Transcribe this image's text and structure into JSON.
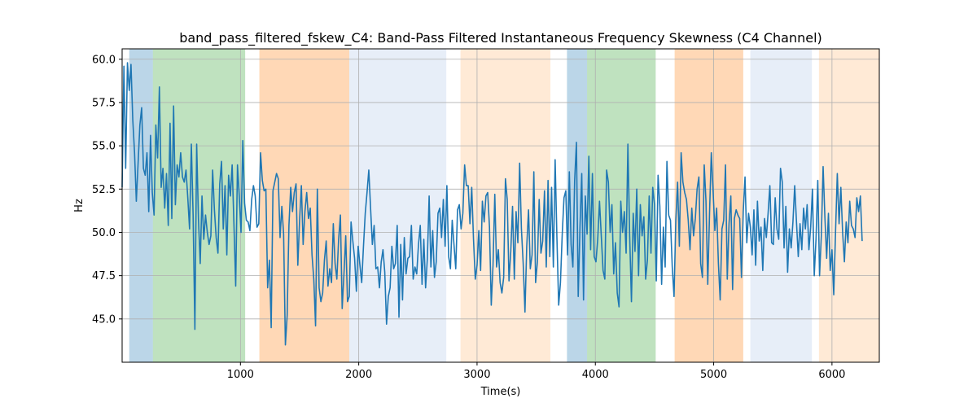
{
  "chart_data": {
    "type": "line",
    "title": "band_pass_filtered_fskew_C4: Band-Pass Filtered Instantaneous Frequency Skewness (C4 Channel)",
    "xlabel": "Time(s)",
    "ylabel": "Hz",
    "xlim": [
      0,
      6400
    ],
    "ylim": [
      42.5,
      60.6
    ],
    "grid": true,
    "x_ticks": [
      1000,
      2000,
      3000,
      4000,
      5000,
      6000
    ],
    "y_ticks": [
      45.0,
      47.5,
      50.0,
      52.5,
      55.0,
      57.5,
      60.0
    ],
    "x_tick_labels": [
      "1000",
      "2000",
      "3000",
      "4000",
      "5000",
      "6000"
    ],
    "y_tick_labels": [
      "45.0",
      "47.5",
      "50.0",
      "52.5",
      "55.0",
      "57.5",
      "60.0"
    ],
    "line_color": "#1f77b4",
    "bands": [
      {
        "start": 60,
        "end": 260,
        "color": "#1f77b4",
        "opacity": 0.3
      },
      {
        "start": 260,
        "end": 1040,
        "color": "#2ca02c",
        "opacity": 0.3
      },
      {
        "start": 1160,
        "end": 1920,
        "color": "#ff7f0e",
        "opacity": 0.3
      },
      {
        "start": 1920,
        "end": 2740,
        "color": "#aec7e8",
        "opacity": 0.3
      },
      {
        "start": 2860,
        "end": 3620,
        "color": "#ffbb78",
        "opacity": 0.3
      },
      {
        "start": 3760,
        "end": 3930,
        "color": "#1f77b4",
        "opacity": 0.3
      },
      {
        "start": 3930,
        "end": 4510,
        "color": "#2ca02c",
        "opacity": 0.3
      },
      {
        "start": 4670,
        "end": 5250,
        "color": "#ff7f0e",
        "opacity": 0.3
      },
      {
        "start": 5310,
        "end": 5830,
        "color": "#aec7e8",
        "opacity": 0.3
      },
      {
        "start": 5890,
        "end": 6400,
        "color": "#ffbb78",
        "opacity": 0.3
      }
    ],
    "series": [
      {
        "name": "band_pass_filtered_fskew_C4",
        "x_start": 0,
        "x_step": 15,
        "values": [
          52.6,
          59.6,
          53.7,
          59.8,
          58.2,
          59.7,
          56.5,
          54.6,
          51.8,
          54.0,
          56.2,
          57.2,
          53.7,
          53.3,
          54.6,
          51.2,
          55.6,
          52.3,
          51.0,
          56.2,
          54.3,
          58.4,
          52.6,
          53.7,
          51.4,
          53.4,
          50.4,
          56.3,
          50.8,
          57.3,
          51.6,
          53.9,
          53.2,
          54.6,
          53.2,
          52.9,
          53.6,
          52.0,
          50.2,
          55.1,
          51.0,
          44.4,
          55.1,
          50.8,
          48.2,
          52.1,
          49.6,
          51.0,
          50.0,
          49.3,
          49.8,
          53.6,
          51.3,
          49.7,
          48.8,
          52.8,
          54.1,
          50.2,
          52.7,
          48.7,
          53.3,
          52.1,
          53.9,
          50.5,
          46.9,
          53.9,
          52.1,
          50.0,
          55.3,
          51.7,
          50.7,
          50.6,
          50.1,
          51.9,
          52.7,
          52.1,
          50.3,
          50.5,
          54.6,
          53.0,
          52.4,
          52.5,
          46.8,
          48.4,
          44.5,
          52.4,
          52.9,
          53.4,
          53.1,
          49.7,
          51.5,
          49.9,
          43.5,
          45.2,
          50.4,
          52.6,
          51.2,
          52.3,
          52.8,
          48.1,
          50.7,
          52.7,
          49.3,
          51.2,
          52.3,
          50.8,
          51.4,
          48.7,
          47.3,
          44.6,
          52.5,
          46.8,
          46.0,
          46.5,
          48.4,
          49.5,
          46.9,
          47.9,
          47.1,
          50.5,
          48.2,
          47.3,
          49.6,
          51.0,
          45.6,
          47.6,
          49.8,
          46.0,
          46.3,
          50.6,
          49.5,
          48.5,
          46.6,
          49.2,
          48.1,
          47.1,
          49.2,
          51.1,
          52.3,
          53.6,
          51.4,
          49.3,
          50.4,
          47.9,
          48.0,
          46.8,
          48.3,
          49.0,
          47.7,
          44.7,
          46.3,
          46.8,
          49.2,
          47.9,
          48.2,
          50.4,
          45.1,
          49.3,
          46.1,
          49.7,
          47.6,
          48.5,
          48.6,
          50.4,
          47.3,
          48.0,
          47.6,
          49.3,
          50.4,
          47.0,
          49.6,
          46.8,
          48.5,
          52.1,
          48.0,
          50.1,
          47.4,
          48.3,
          51.1,
          51.4,
          49.7,
          51.9,
          49.2,
          52.7,
          48.6,
          47.9,
          50.7,
          49.3,
          47.9,
          51.3,
          51.6,
          50.2,
          51.1,
          53.9,
          52.7,
          52.7,
          50.5,
          52.6,
          49.6,
          47.3,
          48.1,
          50.1,
          47.8,
          51.8,
          50.6,
          52.1,
          52.3,
          50.3,
          45.8,
          48.1,
          52.2,
          48.0,
          49.0,
          47.1,
          46.5,
          47.4,
          53.1,
          51.9,
          47.2,
          48.9,
          51.5,
          47.3,
          51.2,
          49.4,
          54.0,
          50.2,
          48.2,
          45.4,
          49.2,
          51.3,
          47.9,
          48.7,
          53.5,
          47.1,
          48.3,
          51.9,
          48.8,
          49.5,
          52.4,
          48.0,
          53.0,
          48.6,
          52.6,
          48.0,
          54.2,
          49.7,
          45.8,
          47.1,
          49.9,
          52.0,
          52.4,
          48.7,
          53.5,
          49.3,
          48.0,
          53.0,
          55.2,
          46.3,
          50.3,
          53.4,
          46.1,
          52.1,
          49.9,
          54.4,
          49.0,
          53.4,
          48.6,
          48.3,
          49.6,
          51.8,
          49.8,
          47.8,
          47.3,
          53.6,
          52.9,
          50.0,
          51.6,
          47.6,
          49.4,
          46.5,
          45.7,
          51.8,
          50.0,
          51.2,
          48.8,
          55.1,
          49.8,
          46.0,
          51.1,
          48.9,
          52.5,
          47.5,
          51.6,
          49.8,
          50.9,
          47.3,
          48.4,
          52.1,
          48.8,
          52.6,
          51.6,
          47.2,
          53.3,
          51.5,
          47.0,
          50.3,
          48.0,
          54.1,
          51.0,
          50.7,
          48.0,
          46.3,
          50.7,
          52.9,
          49.2,
          54.6,
          52.9,
          52.3,
          51.9,
          50.7,
          49.0,
          51.4,
          49.8,
          50.8,
          52.5,
          53.2,
          48.2,
          47.4,
          53.9,
          51.8,
          47.0,
          51.1,
          54.6,
          52.4,
          50.1,
          51.4,
          48.2,
          46.1,
          50.2,
          50.7,
          53.9,
          47.3,
          50.5,
          52.1,
          46.7,
          50.8,
          51.3,
          51.0,
          50.8,
          47.4,
          51.2,
          53.2,
          49.4,
          51.1,
          50.3,
          48.7,
          51.3,
          48.1,
          51.8,
          49.5,
          50.3,
          47.8,
          50.8,
          49.7,
          51.1,
          52.7,
          49.4,
          49.3,
          52.0,
          50.2,
          49.6,
          53.7,
          52.9,
          49.1,
          51.5,
          47.7,
          50.2,
          49.1,
          50.6,
          52.7,
          50.6,
          48.6,
          50.5,
          49.0,
          51.4,
          50.2,
          51.6,
          49.0,
          50.3,
          52.5,
          47.5,
          49.6,
          53.0,
          47.5,
          49.8,
          53.8,
          50.9,
          48.5,
          51.1,
          47.8,
          49.0,
          46.4,
          50.0,
          53.4,
          50.5,
          52.6,
          50.0,
          48.3,
          50.6,
          49.4,
          51.8,
          50.4,
          50.2,
          49.7,
          52.0,
          51.2,
          52.1,
          49.5
        ]
      }
    ]
  }
}
